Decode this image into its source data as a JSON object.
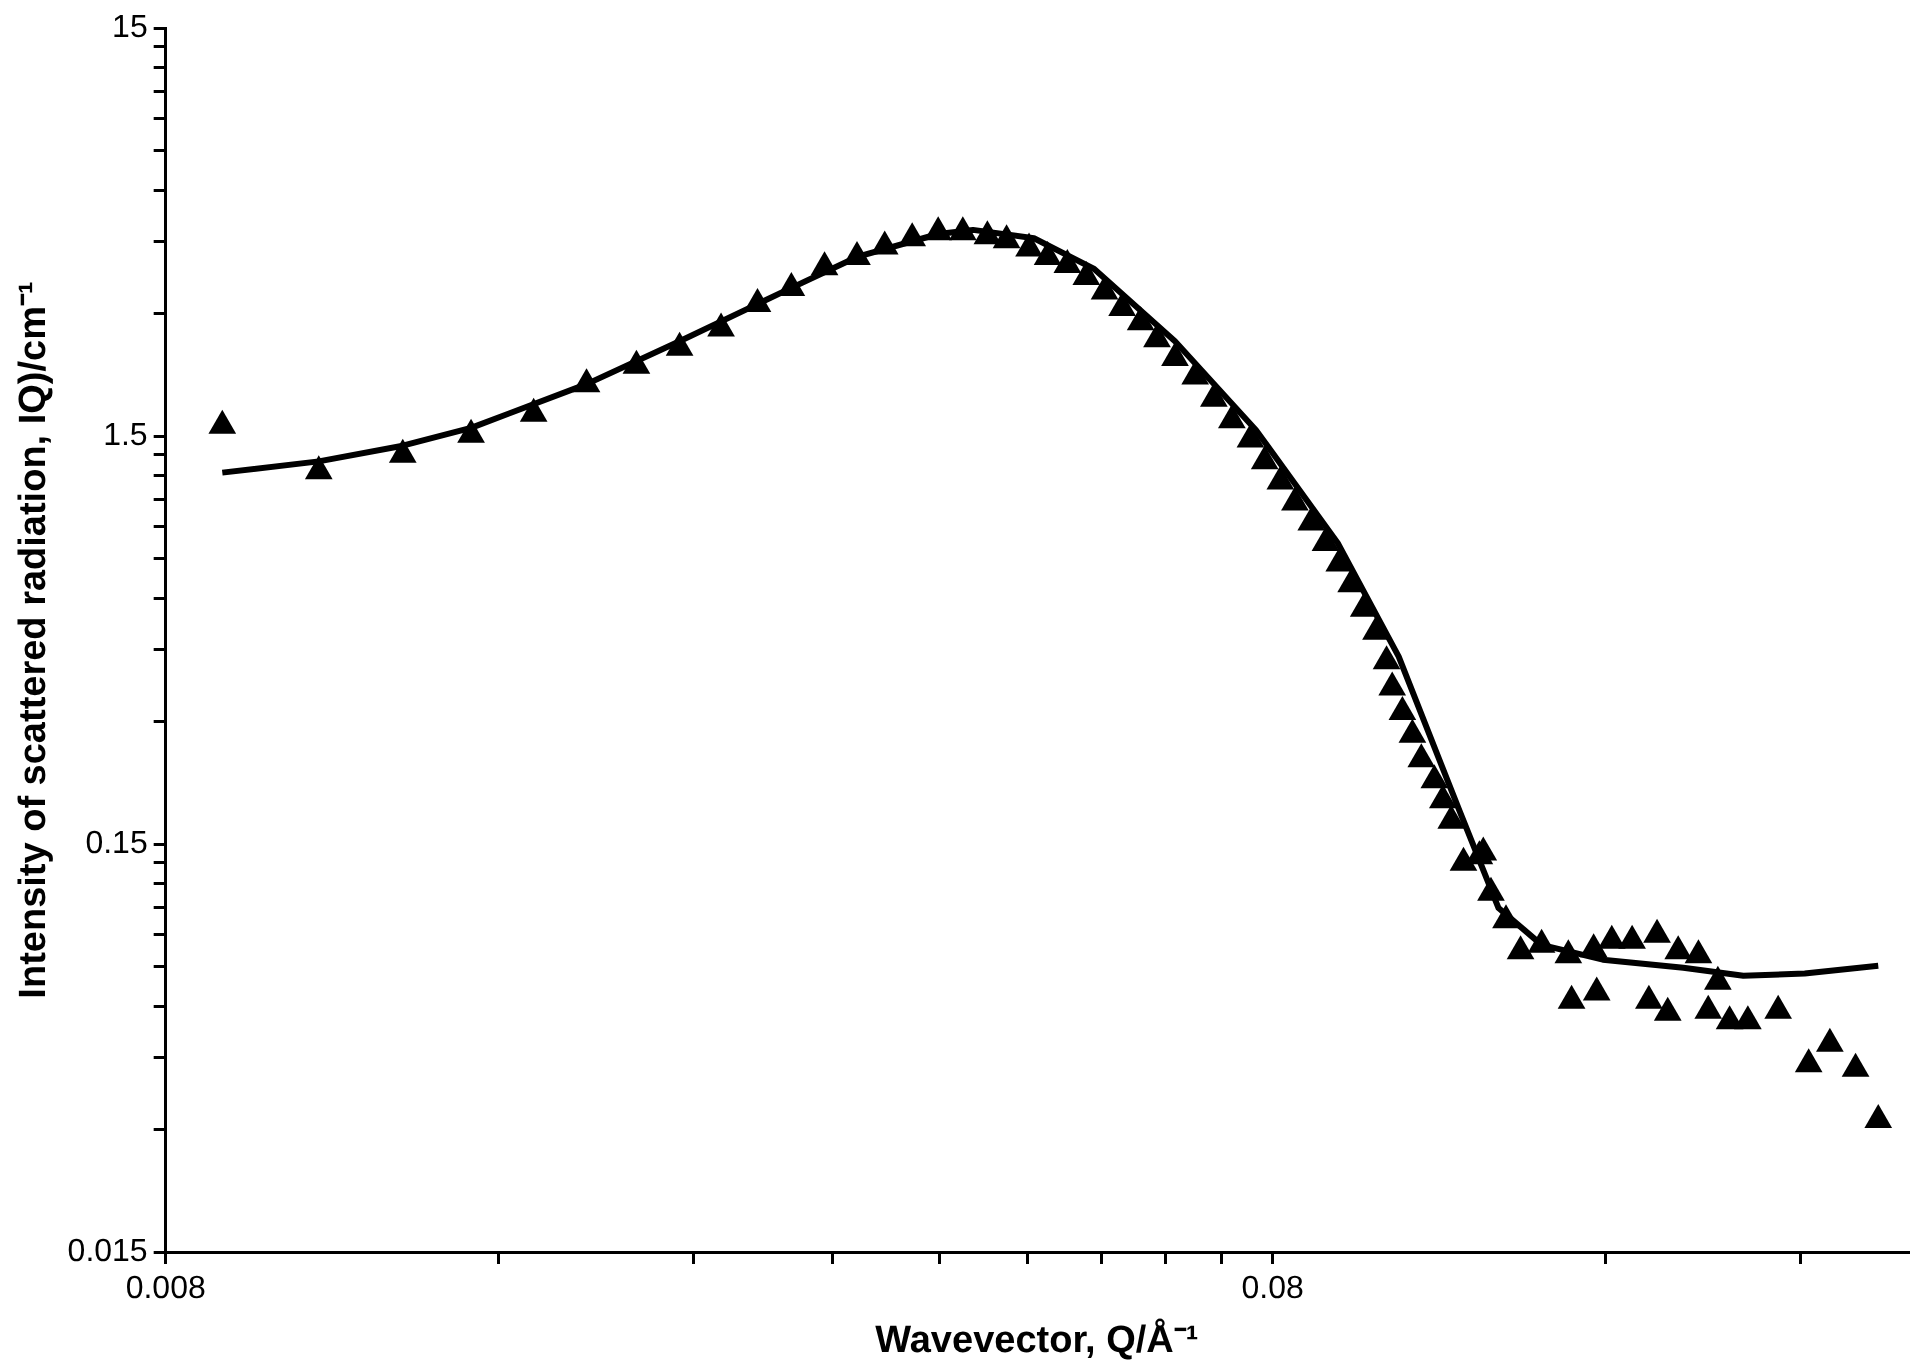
{
  "chart_data": {
    "type": "scatter",
    "xlabel": "Wavevector, Q/Å⁻¹",
    "ylabel": "Intensity of scattered radiation, IQ)/cm⁻¹",
    "log": "xy",
    "grid": false,
    "legend": false,
    "xlim": [
      0.008,
      0.3
    ],
    "xticks": [
      0.008,
      {
        "value": 0.016,
        "label": null
      },
      {
        "value": 0.024,
        "label": null
      },
      {
        "value": 0.032,
        "label": null
      },
      {
        "value": 0.04,
        "label": null
      },
      {
        "value": 0.048,
        "label": null
      },
      {
        "value": 0.056,
        "label": null
      },
      {
        "value": 0.064,
        "label": null
      },
      {
        "value": 0.072,
        "label": null
      },
      0.08,
      {
        "value": 0.16,
        "label": null
      },
      {
        "value": 0.24,
        "label": null
      }
    ],
    "ylim": [
      0.015,
      15
    ],
    "yticks": [
      0.015,
      {
        "value": 0.03,
        "label": null
      },
      {
        "value": 0.045,
        "label": null
      },
      {
        "value": 0.06,
        "label": null
      },
      {
        "value": 0.075,
        "label": null
      },
      {
        "value": 0.09,
        "label": null
      },
      {
        "value": 0.105,
        "label": null
      },
      {
        "value": 0.12,
        "label": null
      },
      {
        "value": 0.135,
        "label": null
      },
      0.15,
      {
        "value": 0.3,
        "label": null
      },
      {
        "value": 0.45,
        "label": null
      },
      {
        "value": 0.6,
        "label": null
      },
      {
        "value": 0.75,
        "label": null
      },
      {
        "value": 0.9,
        "label": null
      },
      {
        "value": 1.05,
        "label": null
      },
      {
        "value": 1.2,
        "label": null
      },
      {
        "value": 1.35,
        "label": null
      },
      1.5,
      {
        "value": 3,
        "label": null
      },
      {
        "value": 4.5,
        "label": null
      },
      {
        "value": 6,
        "label": null
      },
      {
        "value": 7.5,
        "label": null
      },
      {
        "value": 9,
        "label": null
      },
      {
        "value": 10.5,
        "label": null
      },
      {
        "value": 12,
        "label": null
      },
      {
        "value": 13.5,
        "label": null
      },
      15
    ],
    "series": [
      {
        "type": "scatter",
        "color": "#000000",
        "marker": "triangle",
        "x": [
          0.009,
          0.011,
          0.0131,
          0.0151,
          0.0172,
          0.0192,
          0.0213,
          0.0233,
          0.0254,
          0.0274,
          0.0294,
          0.0315,
          0.0337,
          0.0357,
          0.0378,
          0.0399,
          0.042,
          0.0442,
          0.046,
          0.0482,
          0.0501,
          0.0522,
          0.0543,
          0.0564,
          0.0585,
          0.0608,
          0.0629,
          0.0653,
          0.0681,
          0.0708,
          0.0735,
          0.0764,
          0.0787,
          0.0813,
          0.0838,
          0.0867,
          0.0893,
          0.0919,
          0.0942,
          0.0967,
          0.0992,
          0.1014,
          0.1026,
          0.1048,
          0.107,
          0.109,
          0.112,
          0.114,
          0.116,
          0.119,
          0.123,
          0.124,
          0.126,
          0.13,
          0.134,
          0.14,
          0.148,
          0.149,
          0.156,
          0.157,
          0.162,
          0.169,
          0.175,
          0.178,
          0.182,
          0.186,
          0.194,
          0.198,
          0.202,
          0.207,
          0.215,
          0.229,
          0.244,
          0.255,
          0.269,
          0.282
        ],
        "values": [
          1.59,
          1.23,
          1.35,
          1.51,
          1.7,
          2.01,
          2.23,
          2.47,
          2.75,
          3.16,
          3.46,
          3.89,
          4.12,
          4.37,
          4.58,
          4.74,
          4.74,
          4.63,
          4.53,
          4.32,
          4.12,
          3.94,
          3.68,
          3.39,
          3.09,
          2.85,
          2.59,
          2.33,
          2.1,
          1.85,
          1.64,
          1.47,
          1.3,
          1.16,
          1.03,
          0.92,
          0.82,
          0.73,
          0.65,
          0.566,
          0.497,
          0.421,
          0.363,
          0.316,
          0.278,
          0.242,
          0.215,
          0.192,
          0.171,
          0.135,
          0.14,
          0.143,
          0.114,
          0.0976,
          0.0819,
          0.0849,
          0.0801,
          0.0619,
          0.0828,
          0.0649,
          0.0869,
          0.0869,
          0.0619,
          0.0899,
          0.0579,
          0.0819,
          0.0801,
          0.0585,
          0.0689,
          0.0552,
          0.0552,
          0.0585,
          0.0433,
          0.0486,
          0.0422,
          0.0316
        ]
      },
      {
        "type": "line",
        "color": "#000000",
        "marker": "none",
        "x": [
          0.009,
          0.011,
          0.0131,
          0.0151,
          0.0192,
          0.0233,
          0.0294,
          0.0337,
          0.0399,
          0.0429,
          0.0487,
          0.0552,
          0.0653,
          0.0773,
          0.0916,
          0.104,
          0.118,
          0.128,
          0.14,
          0.159,
          0.188,
          0.213,
          0.242,
          0.282
        ],
        "values": [
          1.22,
          1.3,
          1.42,
          1.57,
          2.01,
          2.56,
          3.46,
          4.12,
          4.69,
          4.8,
          4.58,
          3.85,
          2.56,
          1.55,
          0.82,
          0.432,
          0.181,
          0.1045,
          0.0849,
          0.0781,
          0.0746,
          0.0713,
          0.0722,
          0.0755
        ]
      }
    ]
  }
}
